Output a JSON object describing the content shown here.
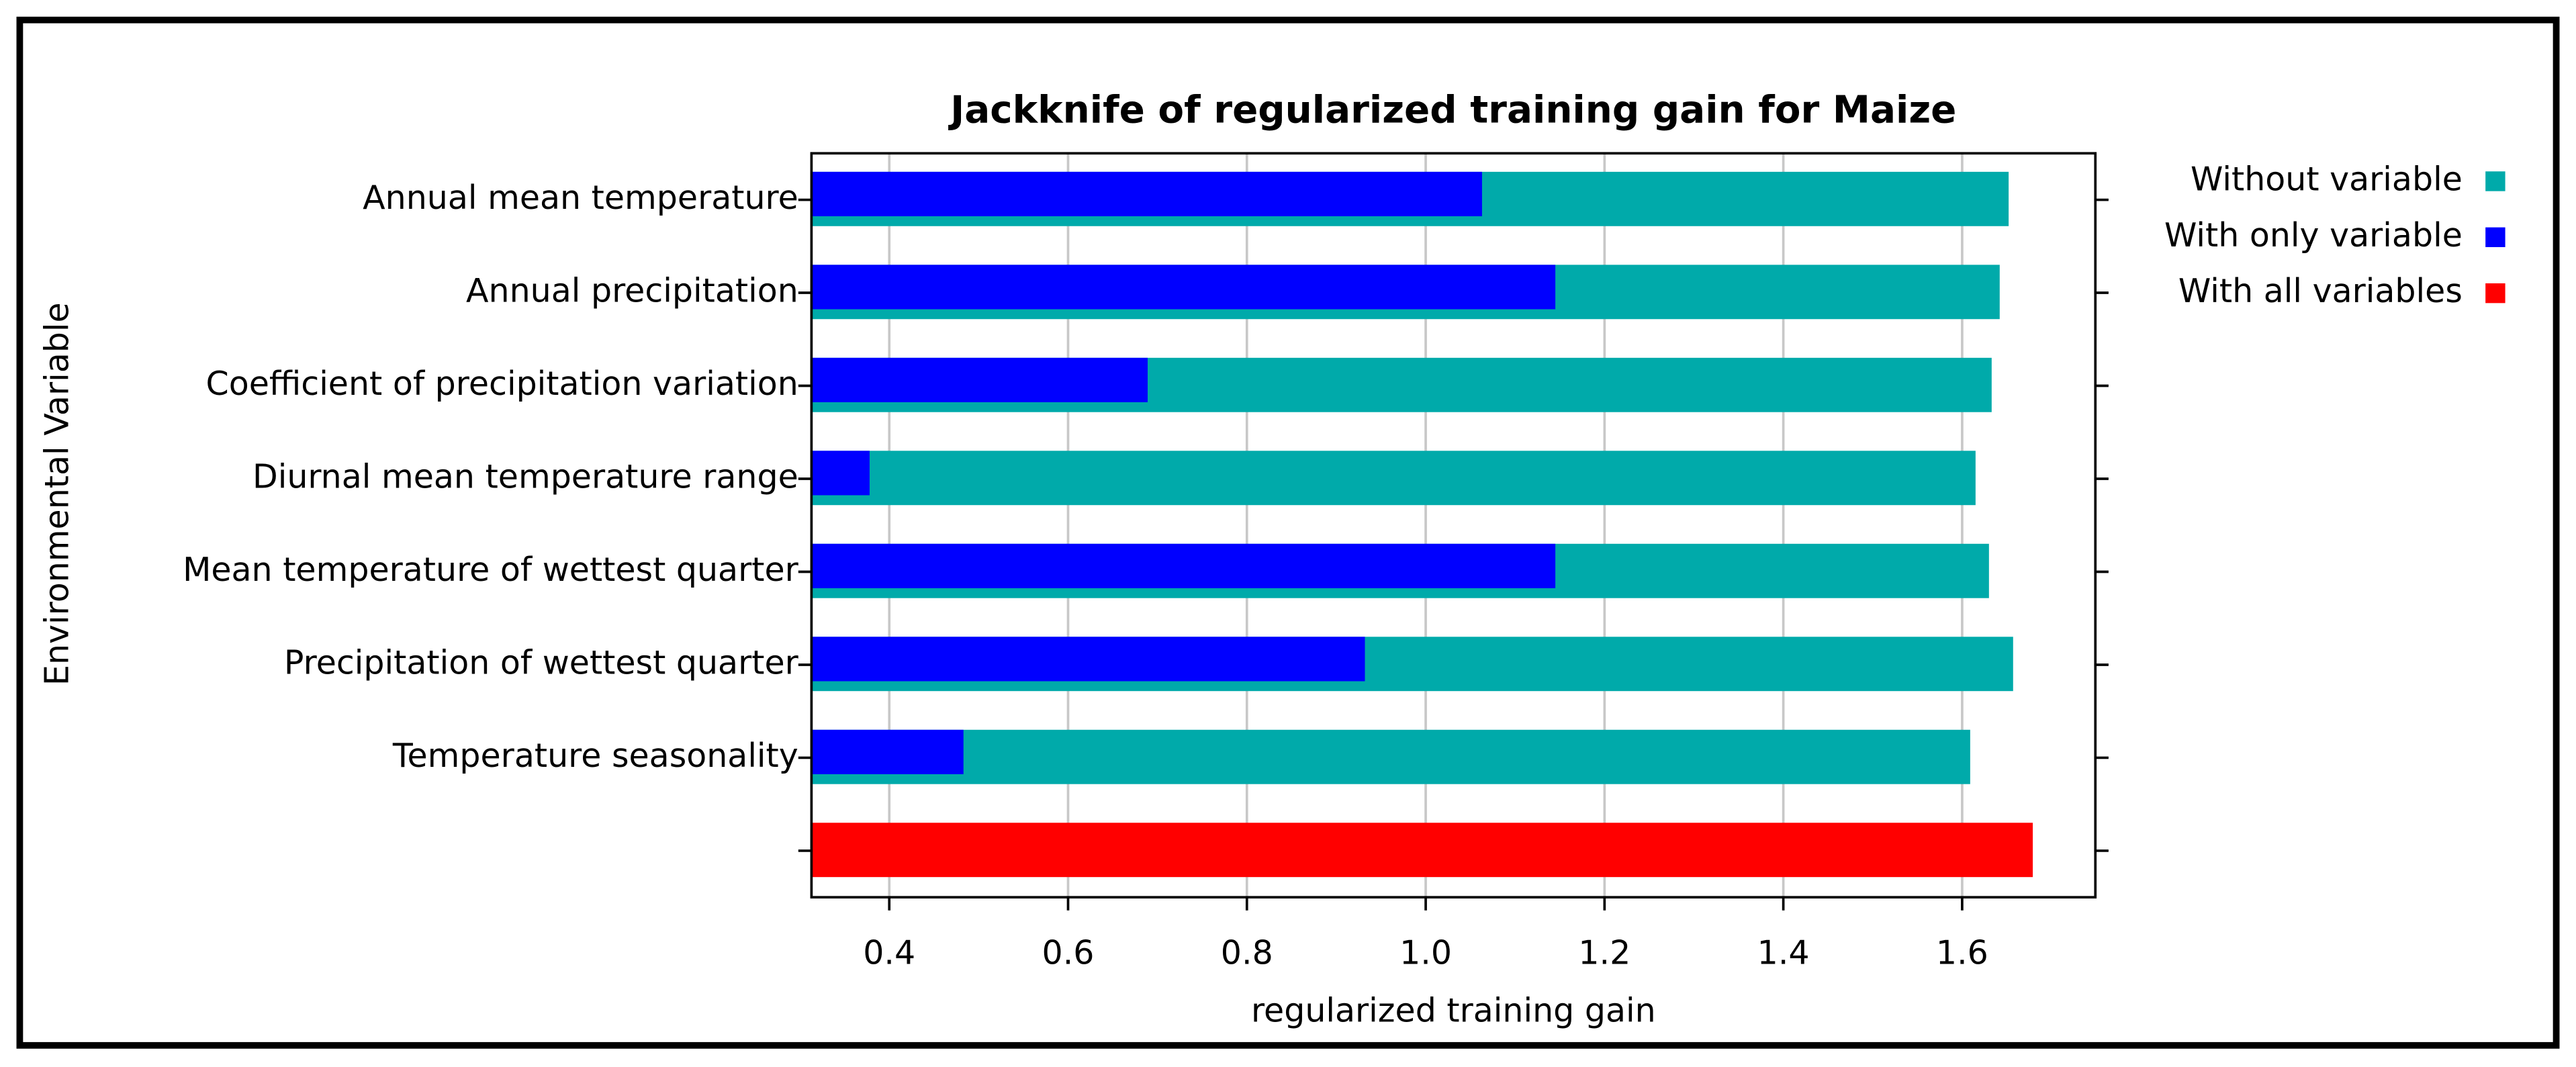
{
  "chart_data": {
    "type": "bar",
    "orientation": "horizontal",
    "title": "Jackknife of regularized training gain for Maize",
    "xlabel": "regularized training gain",
    "ylabel": "Environmental Variable",
    "categories": [
      "Annual mean temperature",
      "Annual precipitation",
      "Coefficient of precipitation variation",
      "Diurnal mean temperature range",
      "Mean temperature of wettest quarter",
      "Precipitation of wettest quarter",
      "Temperature seasonality",
      null
    ],
    "series": [
      {
        "name": "Without variable",
        "color": "#00aaaa",
        "values": [
          1.652,
          1.642,
          1.633,
          1.615,
          1.63,
          1.657,
          1.609,
          null
        ]
      },
      {
        "name": "With only variable",
        "color": "#0000ff",
        "values": [
          1.063,
          1.145,
          0.689,
          0.378,
          1.145,
          0.932,
          0.483,
          null
        ]
      },
      {
        "name": "With all variables",
        "color": "#ff0000",
        "values": [
          null,
          null,
          null,
          null,
          null,
          null,
          null,
          1.679
        ]
      }
    ],
    "xlim": [
      0.313,
      1.749
    ],
    "xticks": [
      0.4,
      0.6,
      0.8,
      {
        "value": 1.0,
        "label": "1.0"
      },
      1.2,
      1.4,
      1.6
    ],
    "grid": true,
    "legend": "right"
  }
}
